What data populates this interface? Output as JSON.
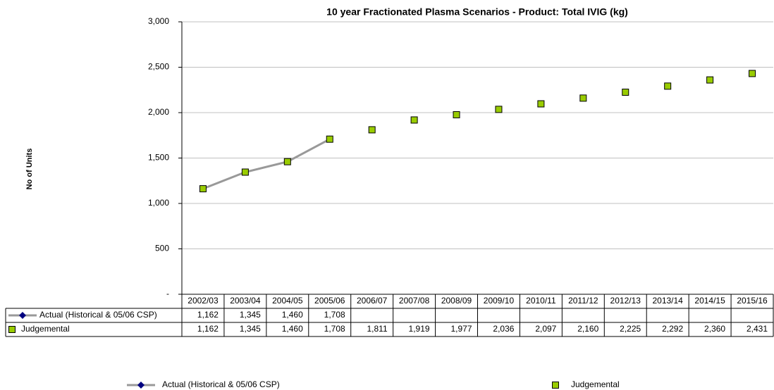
{
  "chart_data": {
    "type": "line",
    "title": "10 year Fractionated Plasma Scenarios - Product: Total IVIG (kg)",
    "y_label": "No of Units",
    "categories": [
      "2002/03",
      "2003/04",
      "2004/05",
      "2005/06",
      "2006/07",
      "2007/08",
      "2008/09",
      "2009/10",
      "2010/11",
      "2011/12",
      "2012/13",
      "2013/14",
      "2014/15",
      "2015/16"
    ],
    "series": [
      {
        "name": "Actual (Historical & 05/06 CSP)",
        "color": "#999999",
        "marker_color": "#000080",
        "values": [
          1162,
          1345,
          1460,
          1708,
          null,
          null,
          null,
          null,
          null,
          null,
          null,
          null,
          null,
          null
        ],
        "value_labels": [
          "1,162",
          "1,345",
          "1,460",
          "1,708",
          null,
          null,
          null,
          null,
          null,
          null,
          null,
          null,
          null,
          null
        ]
      },
      {
        "name": "Judgemental",
        "color": "#99cc00",
        "values": [
          1162,
          1345,
          1460,
          1708,
          1811,
          1919,
          1977,
          2036,
          2097,
          2160,
          2225,
          2292,
          2360,
          2431
        ],
        "value_labels": [
          "1,162",
          "1,345",
          "1,460",
          "1,708",
          "1,811",
          "1,919",
          "1,977",
          "2,036",
          "2,097",
          "2,160",
          "2,225",
          "2,292",
          "2,360",
          "2,431"
        ]
      }
    ],
    "ylim": [
      0,
      3000
    ],
    "yticks": [
      {
        "value": 0,
        "label": "-"
      },
      500,
      {
        "value": 1000,
        "label": "1,000"
      },
      {
        "value": 1500,
        "label": "1,500"
      },
      {
        "value": 2000,
        "label": "2,000"
      },
      {
        "value": 2500,
        "label": "2,500"
      },
      {
        "value": 3000,
        "label": "3,000"
      }
    ],
    "grid": true,
    "legend": "bottom"
  }
}
